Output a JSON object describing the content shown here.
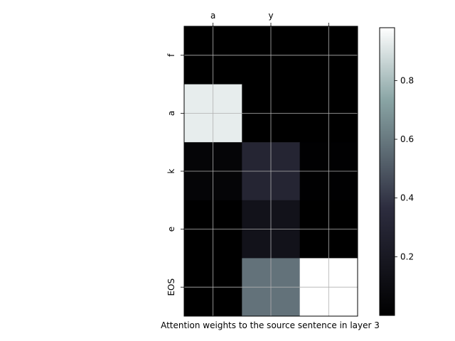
{
  "chart_data": {
    "type": "heatmap",
    "title": "",
    "xlabel": "Attention weights to the source sentence in layer 3",
    "ylabel": "",
    "x_tick_labels": [
      "a",
      "y",
      ""
    ],
    "y_tick_labels": [
      "f",
      "a",
      "k",
      "e",
      "EOS"
    ],
    "values": [
      [
        0.0,
        0.0,
        0.0
      ],
      [
        0.93,
        0.0,
        0.0
      ],
      [
        0.04,
        0.3,
        0.01
      ],
      [
        0.0,
        0.15,
        0.0
      ],
      [
        0.0,
        0.58,
        0.98
      ]
    ],
    "colormap": "bone",
    "grid": true,
    "colorbar": {
      "min": 0.0,
      "max": 0.98,
      "ticks": [
        0.2,
        0.4,
        0.6,
        0.8
      ],
      "tick_labels": [
        "0.2",
        "0.4",
        "0.6",
        "0.8"
      ]
    }
  }
}
